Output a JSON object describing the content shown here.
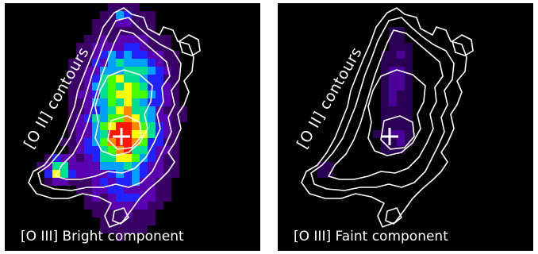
{
  "panels": [
    {
      "id": "left",
      "side_label": "[O II] contours",
      "bottom_label": "[O III] Bright component",
      "palette": [
        "#000000",
        "#3a0066",
        "#5a00b0",
        "#2222ff",
        "#00a0ff",
        "#00e090",
        "#44ff00",
        "#ffff00",
        "#ff8800",
        "#ff1800"
      ]
    },
    {
      "id": "right",
      "side_label": "[O II] contours",
      "bottom_label": "[O III] Faint component",
      "palette": [
        "#000000",
        "#2a0055",
        "#4a0099",
        "#2222ff",
        "#0090ff",
        "#00c0d0"
      ]
    }
  ],
  "contour_color": "#ffffff",
  "marker_color": "#ffffff"
}
